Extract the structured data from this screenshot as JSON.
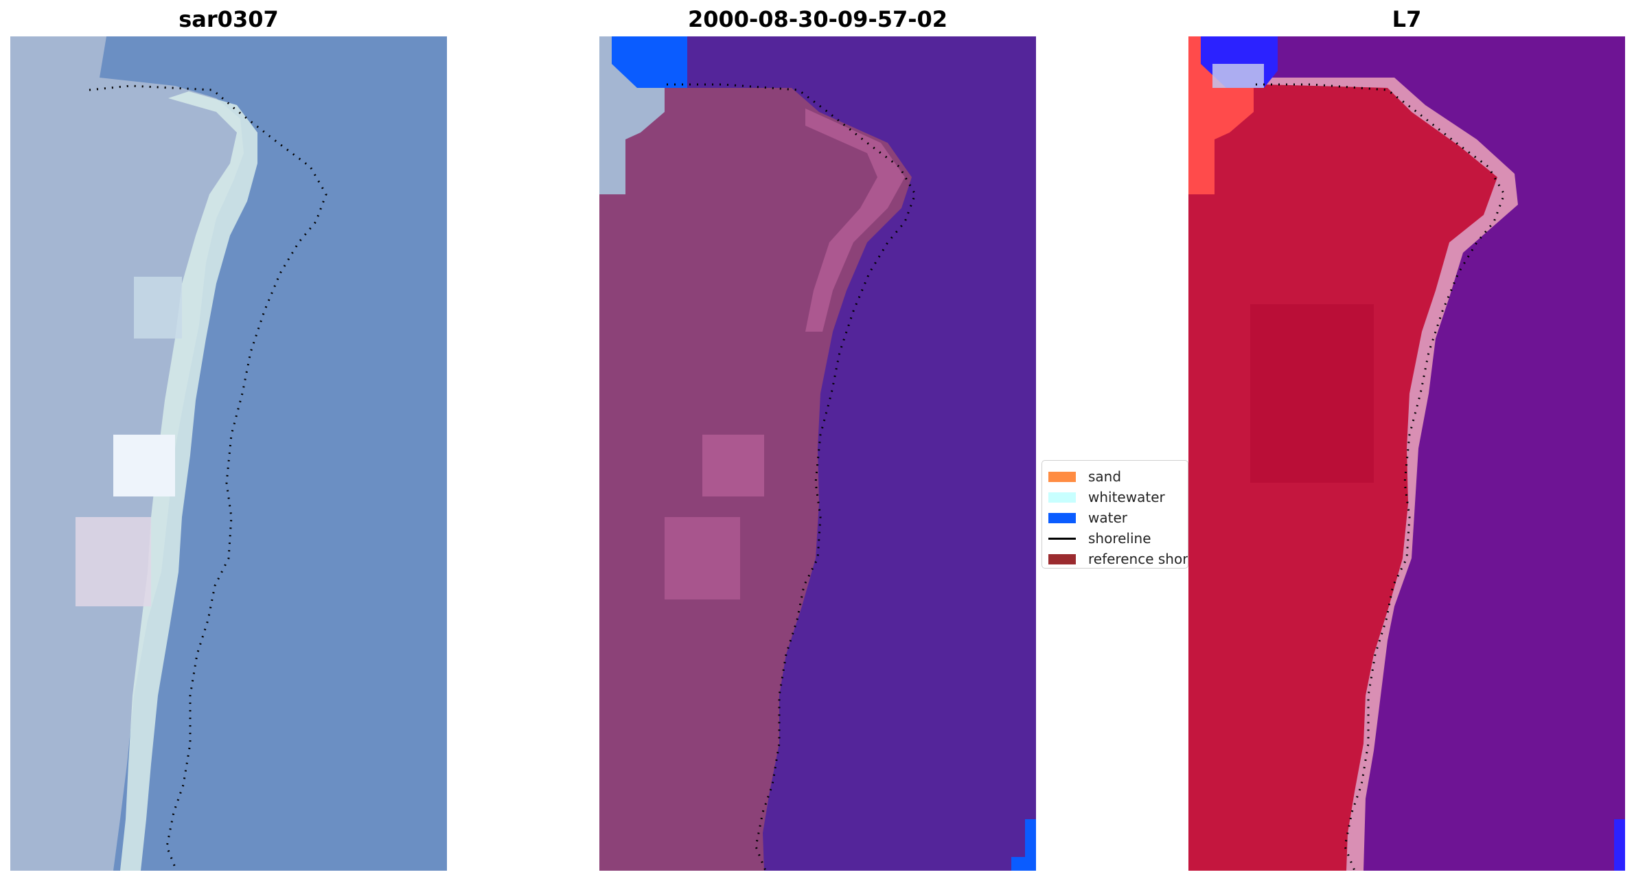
{
  "panels": [
    {
      "title": "sar0307"
    },
    {
      "title": "2000-08-30-09-57-02"
    },
    {
      "title": "L7"
    }
  ],
  "legend": {
    "items": [
      {
        "label": "sand",
        "color": "#ff8c42"
      },
      {
        "label": "whitewater",
        "color": "#c8ffff"
      },
      {
        "label": "water",
        "color": "#0a5cff"
      },
      {
        "label": "shoreline",
        "color": "#000000"
      },
      {
        "label": "reference shoreline",
        "color": "#9b2b2f"
      }
    ]
  },
  "palette": {
    "rgb_water": "#6b8fc3",
    "rgb_land": "#a4b6d2",
    "rgb_beach": "#d8ecea",
    "class_water": "#54259a",
    "class_land": "#8c4278",
    "class_water_patch": "#0a5cff",
    "index_water": "#6e1494",
    "index_land": "#c4163e",
    "index_edge": "#d98fb4",
    "index_red_patch": "#ff4b4b",
    "index_blue_patch": "#2b22ff"
  }
}
